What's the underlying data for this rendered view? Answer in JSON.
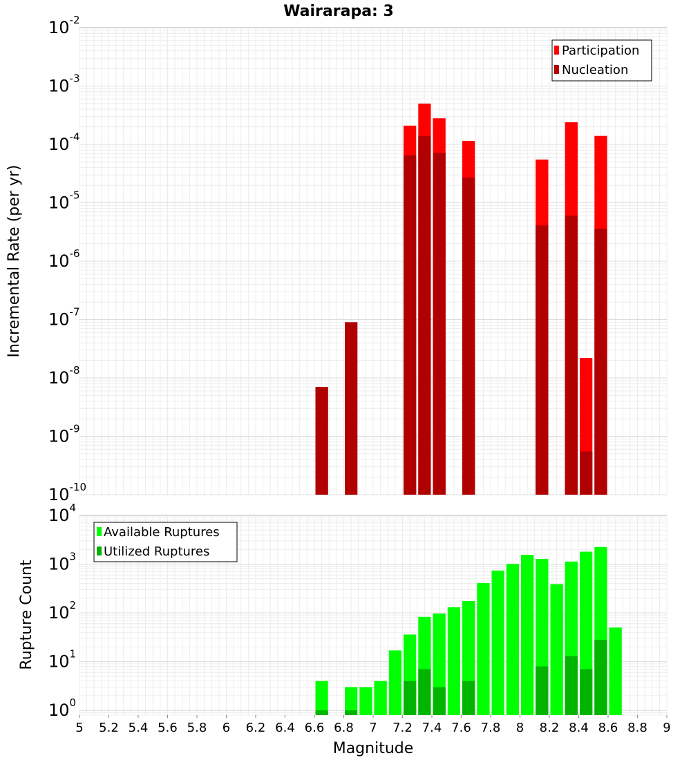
{
  "chart_data": [
    {
      "type": "bar",
      "title": "Wairarapa: 3",
      "xlabel": "",
      "ylabel": "Incremental Rate (per yr)",
      "yscale": "log",
      "ylim": [
        1e-10,
        0.01
      ],
      "xlim": [
        5,
        9
      ],
      "bin_width": 0.1,
      "y_tick_exponents": [
        -10,
        -9,
        -8,
        -7,
        -6,
        -5,
        -4,
        -3,
        -2
      ],
      "grid": true,
      "legend_position": "top-right",
      "colors": {
        "Participation": "#ff0000",
        "Nucleation": "#b00000"
      },
      "x": [
        6.65,
        6.85,
        7.25,
        7.35,
        7.45,
        7.65,
        8.15,
        8.35,
        8.45,
        8.55
      ],
      "series": [
        {
          "name": "Participation",
          "values": [
            7e-09,
            9e-08,
            0.00021,
            0.0005,
            0.00028,
            0.000115,
            5.5e-05,
            0.00024,
            2.2e-08,
            0.00014
          ]
        },
        {
          "name": "Nucleation",
          "values": [
            7e-09,
            9e-08,
            6.5e-05,
            0.00014,
            7.2e-05,
            2.7e-05,
            4.1e-06,
            6e-06,
            5.5e-10,
            3.6e-06
          ]
        }
      ]
    },
    {
      "type": "bar",
      "title": "",
      "xlabel": "Magnitude",
      "ylabel": "Rupture Count",
      "yscale": "log",
      "ylim": [
        0.8,
        10000
      ],
      "xlim": [
        5,
        9
      ],
      "bin_width": 0.1,
      "x_ticks": [
        "5",
        "5.2",
        "5.4",
        "5.6",
        "5.8",
        "6",
        "6.2",
        "6.4",
        "6.6",
        "6.8",
        "7",
        "7.2",
        "7.4",
        "7.6",
        "7.8",
        "8",
        "8.2",
        "8.4",
        "8.6",
        "8.8",
        "9"
      ],
      "y_tick_exponents": [
        0,
        1,
        2,
        3,
        4
      ],
      "grid": true,
      "legend_position": "top-left",
      "colors": {
        "Available Ruptures": "#00ff00",
        "Utilized Ruptures": "#00b400"
      },
      "x": [
        6.65,
        6.85,
        6.95,
        7.05,
        7.15,
        7.25,
        7.35,
        7.45,
        7.55,
        7.65,
        7.75,
        7.85,
        7.95,
        8.05,
        8.15,
        8.25,
        8.35,
        8.45,
        8.55,
        8.65
      ],
      "series": [
        {
          "name": "Available Ruptures",
          "values": [
            4,
            3,
            3,
            4,
            17,
            36,
            83,
            97,
            130,
            175,
            410,
            740,
            1010,
            1550,
            1280,
            390,
            1130,
            1800,
            2250,
            50
          ]
        },
        {
          "name": "Utilized Ruptures",
          "values": [
            1,
            1,
            0,
            0,
            0,
            4,
            7,
            3,
            0,
            4,
            0,
            0,
            0,
            0,
            8,
            0,
            13,
            7,
            28,
            0
          ]
        }
      ]
    }
  ]
}
